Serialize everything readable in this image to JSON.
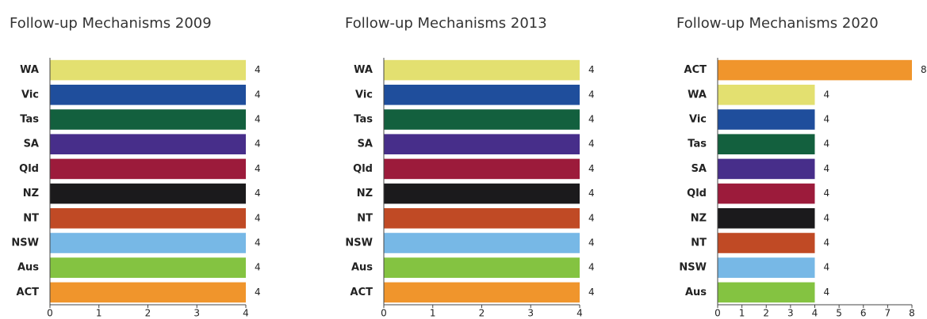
{
  "chart_data": [
    {
      "type": "barh",
      "title": "Follow-up Mechanisms 2009",
      "categories": [
        "WA",
        "Vic",
        "Tas",
        "SA",
        "Qld",
        "NZ",
        "NT",
        "NSW",
        "Aus",
        "ACT"
      ],
      "values": [
        4,
        4,
        4,
        4,
        4,
        4,
        4,
        4,
        4,
        4
      ],
      "colors": [
        "#e3e070",
        "#1f4e9c",
        "#13603e",
        "#472e8a",
        "#9c1b3b",
        "#1b1a1c",
        "#c04a25",
        "#77b8e6",
        "#84c341",
        "#f0952c"
      ],
      "xlim": [
        0,
        4
      ],
      "xticks": [
        0,
        1,
        2,
        3,
        4
      ]
    },
    {
      "type": "barh",
      "title": "Follow-up Mechanisms 2013",
      "categories": [
        "WA",
        "Vic",
        "Tas",
        "SA",
        "Qld",
        "NZ",
        "NT",
        "NSW",
        "Aus",
        "ACT"
      ],
      "values": [
        4,
        4,
        4,
        4,
        4,
        4,
        4,
        4,
        4,
        4
      ],
      "colors": [
        "#e3e070",
        "#1f4e9c",
        "#13603e",
        "#472e8a",
        "#9c1b3b",
        "#1b1a1c",
        "#c04a25",
        "#77b8e6",
        "#84c341",
        "#f0952c"
      ],
      "xlim": [
        0,
        4
      ],
      "xticks": [
        0,
        1,
        2,
        3,
        4
      ]
    },
    {
      "type": "barh",
      "title": "Follow-up Mechanisms 2020",
      "categories": [
        "ACT",
        "WA",
        "Vic",
        "Tas",
        "SA",
        "Qld",
        "NZ",
        "NT",
        "NSW",
        "Aus"
      ],
      "values": [
        8,
        4,
        4,
        4,
        4,
        4,
        4,
        4,
        4,
        4
      ],
      "colors": [
        "#f0952c",
        "#e3e070",
        "#1f4e9c",
        "#13603e",
        "#472e8a",
        "#9c1b3b",
        "#1b1a1c",
        "#c04a25",
        "#77b8e6",
        "#84c341"
      ],
      "xlim": [
        0,
        8
      ],
      "xticks": [
        0,
        1,
        2,
        3,
        4,
        5,
        6,
        7,
        8
      ]
    }
  ]
}
